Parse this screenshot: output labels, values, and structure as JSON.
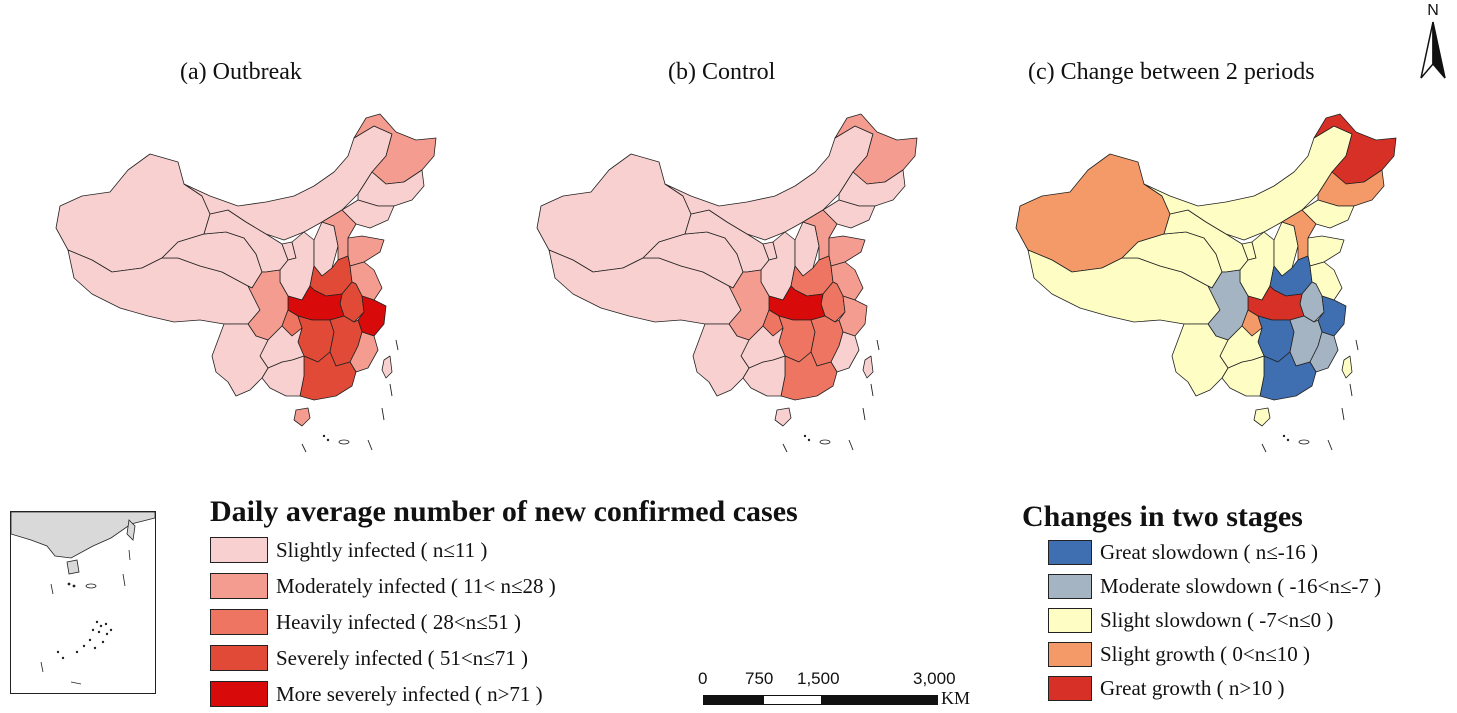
{
  "maps": [
    {
      "title": "(a) Outbreak",
      "regions": {
        "xinjiang": "slight",
        "tibet": "slight",
        "qinghai": "slight",
        "gansu": "slight",
        "inner_mongolia": "slight",
        "heilongjiang": "moderate",
        "jilin": "slight",
        "liaoning": "slight",
        "ningxia": "slight",
        "shaanxi": "slight",
        "shanxi": "slight",
        "hebei": "moderate",
        "shandong": "moderate",
        "henan": "severe",
        "anhui": "severe",
        "jiangsu": "moderate",
        "hubei": "more",
        "zhejiang": "more",
        "sichuan": "moderate",
        "chongqing": "heavy",
        "hunan": "severe",
        "jiangxi": "severe",
        "fujian": "moderate",
        "guangdong": "severe",
        "guangxi": "slight",
        "guizhou": "slight",
        "yunnan": "slight",
        "hainan": "moderate",
        "taiwan": "slight"
      }
    },
    {
      "title": "(b) Control",
      "regions": {
        "xinjiang": "slight",
        "tibet": "slight",
        "qinghai": "slight",
        "gansu": "slight",
        "inner_mongolia": "slight",
        "heilongjiang": "moderate",
        "jilin": "slight",
        "liaoning": "slight",
        "ningxia": "slight",
        "shaanxi": "slight",
        "shanxi": "slight",
        "hebei": "moderate",
        "shandong": "moderate",
        "henan": "heavy",
        "anhui": "heavy",
        "jiangsu": "moderate",
        "hubei": "more",
        "zhejiang": "moderate",
        "sichuan": "moderate",
        "chongqing": "heavy",
        "hunan": "heavy",
        "jiangxi": "heavy",
        "fujian": "slight",
        "guangdong": "heavy",
        "guangxi": "slight",
        "guizhou": "slight",
        "yunnan": "slight",
        "hainan": "slight",
        "taiwan": "slight"
      }
    },
    {
      "title": "(c) Change between 2 periods",
      "regions": {
        "xinjiang": "slight_growth",
        "tibet": "slight_slow",
        "qinghai": "slight_slow",
        "gansu": "slight_slow",
        "inner_mongolia": "slight_slow",
        "heilongjiang": "great_growth",
        "jilin": "slight_growth",
        "liaoning": "slight_slow",
        "ningxia": "slight_slow",
        "shaanxi": "slight_slow",
        "shanxi": "slight_slow",
        "hebei": "slight_growth",
        "shandong": "slight_slow",
        "henan": "great_slow",
        "anhui": "moderate_slow",
        "jiangsu": "slight_slow",
        "hubei": "great_growth",
        "zhejiang": "great_slow",
        "sichuan": "moderate_slow",
        "chongqing": "slight_growth",
        "hunan": "great_slow",
        "jiangxi": "moderate_slow",
        "fujian": "moderate_slow",
        "guangdong": "great_slow",
        "guangxi": "slight_slow",
        "guizhou": "slight_slow",
        "yunnan": "slight_slow",
        "hainan": "slight_slow",
        "taiwan": "slight_slow"
      }
    }
  ],
  "legend_left": {
    "heading": "Daily average number of new confirmed cases",
    "items": [
      {
        "key": "slight",
        "label": "Slightly infected ( n≤11 )",
        "color": "#f9d0d0"
      },
      {
        "key": "moderate",
        "label": "Moderately infected ( 11< n≤28 )",
        "color": "#f59c90"
      },
      {
        "key": "heavy",
        "label": "Heavily infected ( 28<n≤51 )",
        "color": "#ef7563"
      },
      {
        "key": "severe",
        "label": "Severely infected ( 51<n≤71 )",
        "color": "#e24a38"
      },
      {
        "key": "more",
        "label": "More severely infected ( n>71 )",
        "color": "#d80a0a"
      }
    ]
  },
  "legend_right": {
    "heading": "Changes in two stages",
    "items": [
      {
        "key": "great_slow",
        "label": "Great slowdown ( n≤-16 )",
        "color": "#3f6fb0"
      },
      {
        "key": "moderate_slow",
        "label": "Moderate slowdown ( -16<n≤-7 )",
        "color": "#a4b4c2"
      },
      {
        "key": "slight_slow",
        "label": "Slight slowdown ( -7<n≤0 )",
        "color": "#fdfdc4"
      },
      {
        "key": "slight_growth",
        "label": "Slight growth ( 0<n≤10 )",
        "color": "#f49a68"
      },
      {
        "key": "great_growth",
        "label": "Great growth ( n>10 )",
        "color": "#d73027"
      }
    ]
  },
  "scale_bar": {
    "ticks": [
      "0",
      "750",
      "1,500",
      "3,000"
    ],
    "unit": "KM"
  },
  "north_arrow": {
    "label": "N",
    "icon": "north-arrow-icon"
  }
}
